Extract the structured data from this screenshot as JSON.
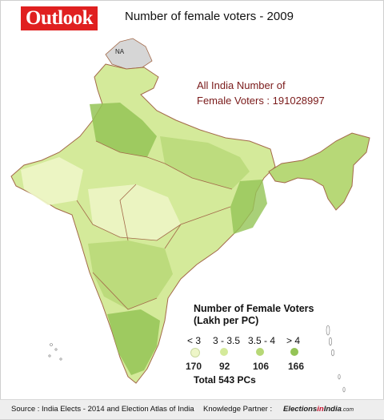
{
  "header": {
    "logo": "Outlook",
    "title": "Number of female voters - 2009"
  },
  "stat": {
    "line1": "All India Number of",
    "line2": "Female Voters : 191028997"
  },
  "map": {
    "disputed_label": "NA",
    "colors": {
      "lt3": "#eef6c8",
      "3to35": "#d4ea9a",
      "35to4": "#b7d877",
      "gt4": "#94c456",
      "na": "#d6d6d6",
      "boundary": "#a36a4a"
    }
  },
  "legend": {
    "title_line1": "Number of Female Voters",
    "title_line2": "(Lakh per PC)",
    "classes": [
      {
        "label": "< 3",
        "count": "170",
        "color": "#eef6c8"
      },
      {
        "label": "3 - 3.5",
        "count": "92",
        "color": "#d4ea9a"
      },
      {
        "label": "3.5 - 4",
        "count": "106",
        "color": "#b7d877"
      },
      {
        "label": "> 4",
        "count": "166",
        "color": "#94c456"
      }
    ],
    "total": "Total 543 PCs"
  },
  "footer": {
    "source": "Source : India Elects - 2014 and Election Atlas of India",
    "partner_label": "Knowledge Partner :",
    "partner_a": "Elections",
    "partner_b": "in",
    "partner_c": "India",
    "partner_d": ".com"
  }
}
